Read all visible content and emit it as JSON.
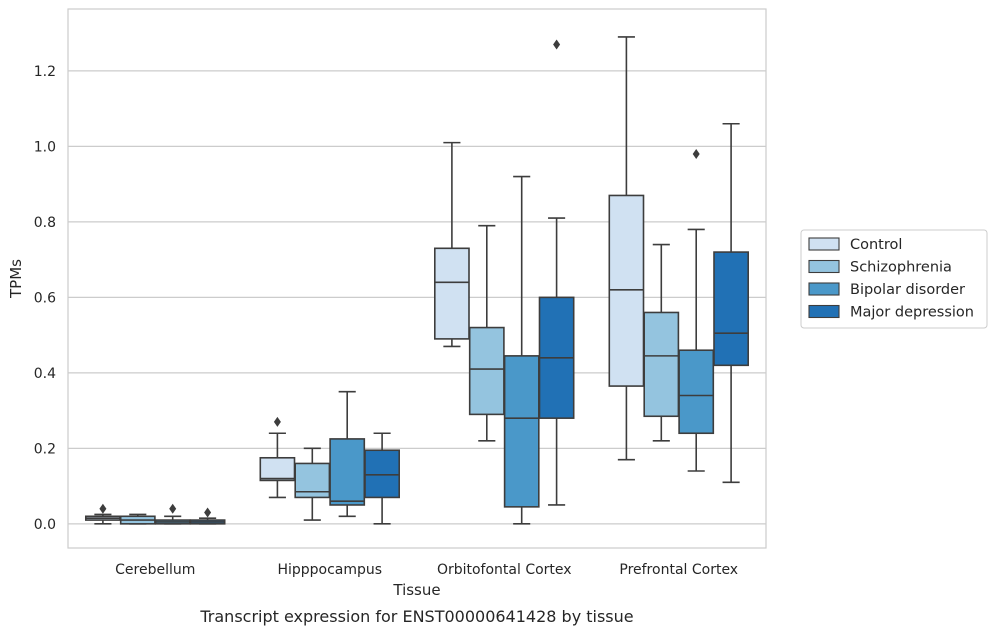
{
  "caption": "Transcript expression for ENST00000641428 by tissue",
  "chart_data": {
    "type": "box",
    "xlabel": "Tissue",
    "ylabel": "TPMs",
    "ylim": [
      -0.064,
      1.364
    ],
    "yticks": [
      0.0,
      0.2,
      0.4,
      0.6,
      0.8,
      1.0,
      1.2
    ],
    "grid": "horizontal",
    "legend_position": "right",
    "categories": [
      "Cerebellum",
      "Hipppocampus",
      "Orbitofontal Cortex",
      "Prefrontal Cortex"
    ],
    "series": [
      {
        "name": "Control",
        "color": "#d0e1f2",
        "boxes": [
          {
            "whislo": 0.0,
            "q1": 0.01,
            "med": 0.015,
            "q3": 0.02,
            "whishi": 0.025,
            "fliers": [
              0.04
            ]
          },
          {
            "whislo": 0.07,
            "q1": 0.115,
            "med": 0.12,
            "q3": 0.175,
            "whishi": 0.24,
            "fliers": [
              0.27
            ]
          },
          {
            "whislo": 0.47,
            "q1": 0.49,
            "med": 0.64,
            "q3": 0.73,
            "whishi": 1.01,
            "fliers": []
          },
          {
            "whislo": 0.17,
            "q1": 0.365,
            "med": 0.62,
            "q3": 0.87,
            "whishi": 1.29,
            "fliers": []
          }
        ]
      },
      {
        "name": "Schizophrenia",
        "color": "#94c4df",
        "boxes": [
          {
            "whislo": 0.0,
            "q1": 0.0,
            "med": 0.01,
            "q3": 0.02,
            "whishi": 0.025,
            "fliers": []
          },
          {
            "whislo": 0.01,
            "q1": 0.07,
            "med": 0.085,
            "q3": 0.16,
            "whishi": 0.2,
            "fliers": []
          },
          {
            "whislo": 0.22,
            "q1": 0.29,
            "med": 0.41,
            "q3": 0.52,
            "whishi": 0.79,
            "fliers": []
          },
          {
            "whislo": 0.22,
            "q1": 0.285,
            "med": 0.445,
            "q3": 0.56,
            "whishi": 0.74,
            "fliers": []
          }
        ]
      },
      {
        "name": "Bipolar disorder",
        "color": "#4a98c9",
        "boxes": [
          {
            "whislo": 0.0,
            "q1": 0.0,
            "med": 0.005,
            "q3": 0.01,
            "whishi": 0.02,
            "fliers": [
              0.04
            ]
          },
          {
            "whislo": 0.02,
            "q1": 0.05,
            "med": 0.06,
            "q3": 0.225,
            "whishi": 0.35,
            "fliers": []
          },
          {
            "whislo": 0.0,
            "q1": 0.045,
            "med": 0.28,
            "q3": 0.445,
            "whishi": 0.92,
            "fliers": []
          },
          {
            "whislo": 0.14,
            "q1": 0.24,
            "med": 0.34,
            "q3": 0.46,
            "whishi": 0.78,
            "fliers": [
              0.98
            ]
          }
        ]
      },
      {
        "name": "Major depression",
        "color": "#2171b5",
        "boxes": [
          {
            "whislo": 0.0,
            "q1": 0.0,
            "med": 0.005,
            "q3": 0.01,
            "whishi": 0.015,
            "fliers": [
              0.03
            ]
          },
          {
            "whislo": 0.0,
            "q1": 0.07,
            "med": 0.13,
            "q3": 0.195,
            "whishi": 0.24,
            "fliers": []
          },
          {
            "whislo": 0.05,
            "q1": 0.28,
            "med": 0.44,
            "q3": 0.6,
            "whishi": 0.81,
            "fliers": [
              1.27
            ]
          },
          {
            "whislo": 0.11,
            "q1": 0.42,
            "med": 0.505,
            "q3": 0.72,
            "whishi": 1.06,
            "fliers": []
          }
        ]
      }
    ]
  }
}
